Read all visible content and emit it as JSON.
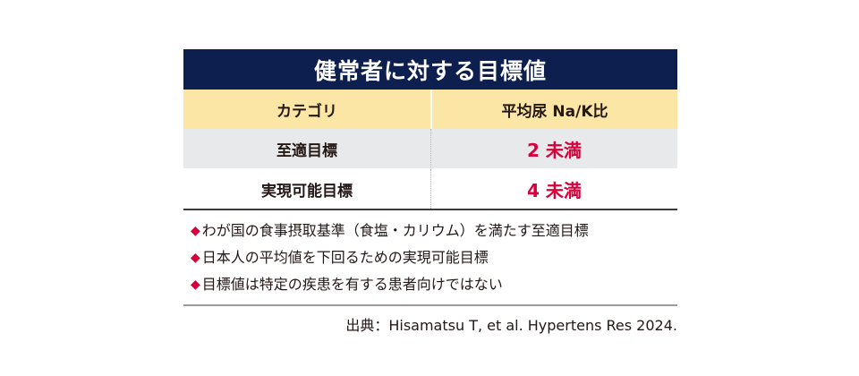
{
  "title": "健常者に対する目標値",
  "columns": [
    "カテゴリ",
    "平均尿 Na/K比"
  ],
  "rows": [
    {
      "category": "至適目標",
      "value": "2 未満"
    },
    {
      "category": "実現可能目標",
      "value": "4 未満"
    }
  ],
  "notes": [
    "わが国の食事摂取基準（食塩・カリウム）を満たす至適目標",
    "日本人の平均値を下回るための実現可能目標",
    "目標値は特定の疾患を有する患者向けではない"
  ],
  "bullet": "◆",
  "source": "出典：Hisamatsu T, et al. Hypertens Res 2024.",
  "colors": {
    "title_bg": "#0d1f4f",
    "header_bg": "#fce6a5",
    "row_alt_bg": "#e8e9eb",
    "accent_red": "#d6003a"
  }
}
